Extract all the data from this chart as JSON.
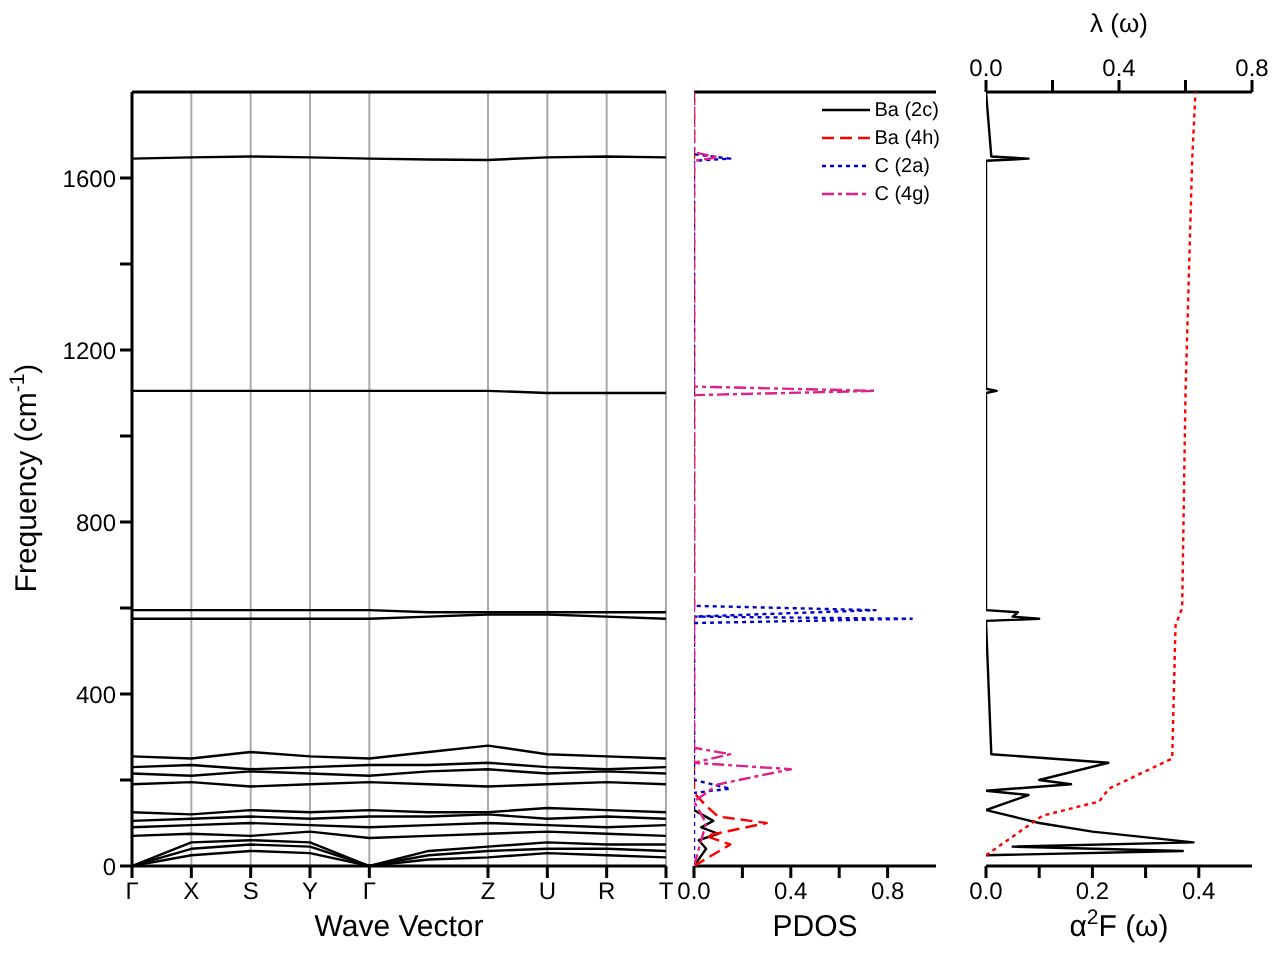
{
  "chart_data": [
    {
      "type": "line",
      "xlabel": "Wave Vector",
      "ylabel": "Frequency (cm$^{-1}$)",
      "categories": [
        "Γ",
        "X",
        "S",
        "Y",
        "Γ",
        null,
        "Z",
        "U",
        "R",
        "T"
      ],
      "ylim": [
        0,
        1800
      ],
      "yticks": [
        0,
        {
          "value": 200,
          "label": null
        },
        400,
        {
          "value": 600,
          "label": null
        },
        800,
        {
          "value": 1000,
          "label": null
        },
        1200,
        {
          "value": 1400,
          "label": null
        },
        1600
      ],
      "grid": "x",
      "marker": "none",
      "line_style": "solid",
      "series": [
        {
          "color": "#000000",
          "values": [
            0,
            25,
            35,
            30,
            0,
            15,
            20,
            30,
            25,
            20
          ]
        },
        {
          "color": "#000000",
          "values": [
            0,
            40,
            50,
            45,
            0,
            25,
            35,
            40,
            40,
            35
          ]
        },
        {
          "color": "#000000",
          "values": [
            0,
            55,
            60,
            55,
            0,
            35,
            45,
            55,
            50,
            50
          ]
        },
        {
          "color": "#000000",
          "values": [
            70,
            75,
            70,
            80,
            65,
            70,
            75,
            80,
            75,
            70
          ]
        },
        {
          "color": "#000000",
          "values": [
            90,
            95,
            100,
            95,
            90,
            95,
            100,
            95,
            90,
            95
          ]
        },
        {
          "color": "#000000",
          "values": [
            105,
            110,
            115,
            110,
            115,
            115,
            120,
            110,
            115,
            110
          ]
        },
        {
          "color": "#000000",
          "values": [
            125,
            120,
            130,
            125,
            130,
            125,
            125,
            135,
            130,
            125
          ]
        },
        {
          "color": "#000000",
          "values": [
            190,
            195,
            185,
            190,
            195,
            190,
            185,
            190,
            195,
            190
          ]
        },
        {
          "color": "#000000",
          "values": [
            215,
            210,
            220,
            215,
            210,
            220,
            225,
            215,
            220,
            215
          ]
        },
        {
          "color": "#000000",
          "values": [
            230,
            235,
            225,
            230,
            235,
            235,
            240,
            230,
            225,
            230
          ]
        },
        {
          "color": "#000000",
          "values": [
            255,
            250,
            265,
            255,
            250,
            265,
            280,
            260,
            255,
            250
          ]
        },
        {
          "color": "#000000",
          "values": [
            575,
            575,
            575,
            575,
            575,
            580,
            585,
            585,
            580,
            575
          ]
        },
        {
          "color": "#000000",
          "values": [
            595,
            595,
            595,
            595,
            595,
            590,
            590,
            590,
            590,
            590
          ]
        },
        {
          "color": "#000000",
          "values": [
            1105,
            1105,
            1105,
            1105,
            1105,
            1105,
            1105,
            1100,
            1100,
            1100
          ]
        },
        {
          "color": "#000000",
          "values": [
            1645,
            1648,
            1650,
            1648,
            1645,
            1643,
            1642,
            1648,
            1650,
            1648
          ]
        }
      ]
    },
    {
      "type": "line",
      "xlabel": "PDOS",
      "xlim": [
        0,
        1.0
      ],
      "xticks": [
        {
          "value": 0,
          "label": "0.0"
        },
        {
          "value": 0.2,
          "label": null
        },
        {
          "value": 0.4,
          "label": "0.4"
        },
        {
          "value": 0.6,
          "label": null
        },
        {
          "value": 0.8,
          "label": "0.8"
        }
      ],
      "ylim": [
        0,
        1800
      ],
      "tick_labels": "x",
      "legend": "top right",
      "marker": "none",
      "series": [
        {
          "name": "Ba (2c)",
          "color": "#000000",
          "line_style": "solid",
          "x": [
            0,
            0.05,
            0.02,
            0.1,
            0.03,
            0.08,
            0
          ],
          "values": [
            0,
            40,
            60,
            75,
            90,
            105,
            130
          ]
        },
        {
          "name": "Ba (4h)",
          "color": "#ff0000",
          "line_style": "dashed",
          "x": [
            0,
            0.15,
            0.05,
            0.3,
            0.1,
            0.05,
            0,
            0
          ],
          "values": [
            0,
            50,
            70,
            100,
            115,
            140,
            170,
            1800
          ]
        },
        {
          "name": "C (2a)",
          "color": "#0000cc",
          "line_style": "dotted",
          "x": [
            0,
            0,
            0.15,
            0,
            0,
            0.9,
            0,
            0.75,
            0,
            0,
            0.15,
            0,
            0
          ],
          "values": [
            0,
            170,
            180,
            200,
            565,
            575,
            580,
            595,
            605,
            1640,
            1645,
            1655,
            1800
          ]
        },
        {
          "name": "C (4g)",
          "color": "#e0208a",
          "line_style": "dashdot",
          "x": [
            0,
            0.05,
            0,
            0.1,
            0.4,
            0,
            0.15,
            0,
            0,
            0.75,
            0,
            0,
            0.1,
            0,
            0
          ],
          "values": [
            0,
            100,
            150,
            190,
            225,
            240,
            260,
            275,
            1095,
            1105,
            1115,
            1640,
            1648,
            1660,
            1800
          ]
        }
      ]
    },
    {
      "type": "line",
      "xlabel": "α$^{2}$F (ω)",
      "x2label": "λ (ω)",
      "xlim": [
        0,
        0.5
      ],
      "xticks": [
        {
          "value": 0,
          "label": "0.0"
        },
        {
          "value": 0.1,
          "label": null
        },
        {
          "value": 0.2,
          "label": "0.2"
        },
        {
          "value": 0.3,
          "label": null
        },
        {
          "value": 0.4,
          "label": "0.4"
        }
      ],
      "x2lim": [
        0,
        0.8
      ],
      "x2ticks": [
        {
          "value": 0,
          "label": "0.0"
        },
        {
          "value": 0.2,
          "label": null
        },
        {
          "value": 0.4,
          "label": "0.4"
        },
        {
          "value": 0.6,
          "label": null
        },
        {
          "value": 0.8,
          "label": "0.8"
        }
      ],
      "ylim": [
        0,
        1800
      ],
      "tick_labels": "x",
      "marker": "none",
      "series": [
        {
          "color": "#000000",
          "line_style": "solid",
          "x": [
            0,
            0.37,
            0.05,
            0.39,
            0.2,
            0.1,
            0,
            0.08,
            0,
            0.16,
            0.1,
            0.23,
            0.01,
            0,
            0.1,
            0.05,
            0.06,
            0,
            0,
            0.02,
            0,
            0,
            0.08,
            0.01,
            0
          ],
          "values": [
            25,
            35,
            45,
            55,
            80,
            100,
            130,
            165,
            175,
            190,
            200,
            240,
            260,
            570,
            575,
            580,
            590,
            595,
            1100,
            1105,
            1110,
            1640,
            1645,
            1650,
            1800
          ]
        },
        {
          "color": "#ff0000",
          "line_style": "dotted",
          "axis": "x2",
          "x": [
            0,
            0.17,
            0.34,
            0.37,
            0.56,
            0.57,
            0.59,
            0.6,
            0.62,
            0.63
          ],
          "values": [
            25,
            117,
            150,
            180,
            250,
            560,
            600,
            1100,
            1640,
            1800
          ]
        }
      ]
    }
  ]
}
